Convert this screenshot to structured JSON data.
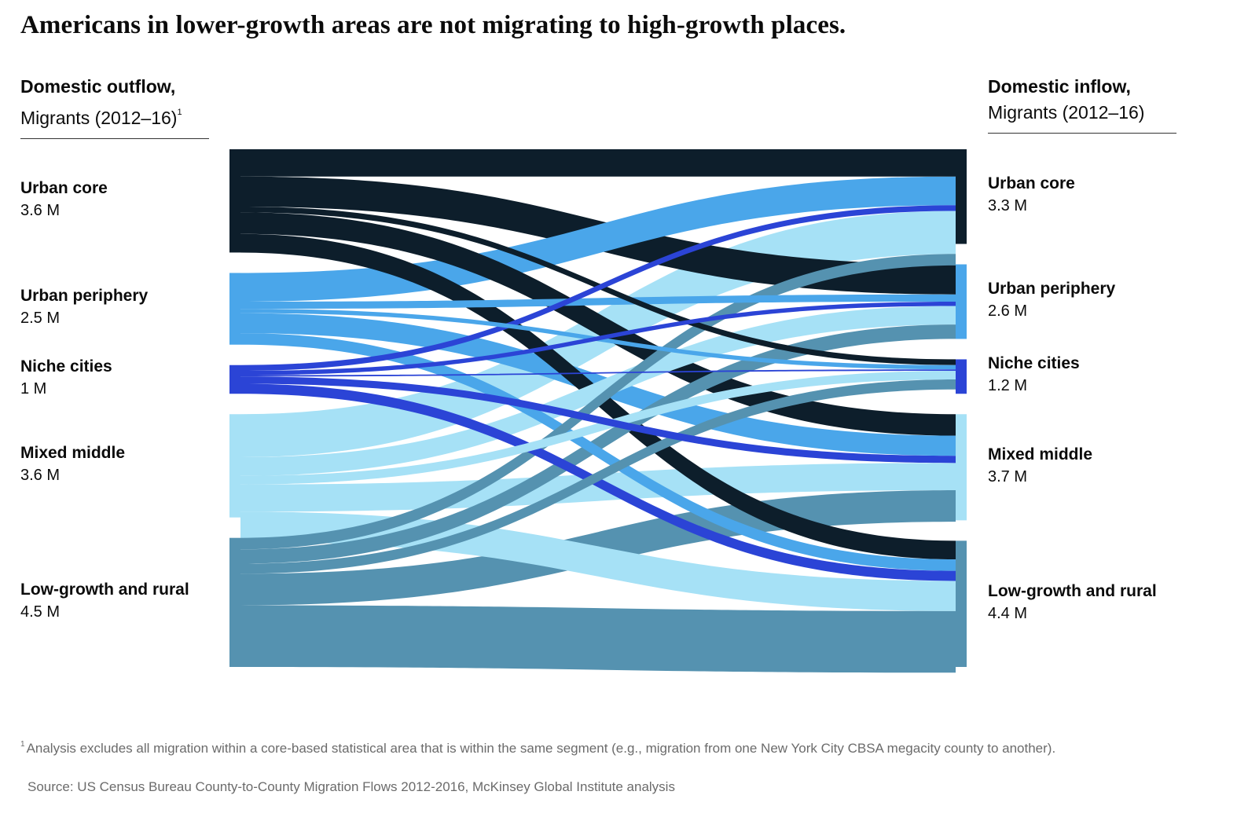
{
  "title": "Americans in lower-growth areas are not migrating to high-growth places.",
  "left_header": {
    "title": "Domestic outflow,",
    "subtitle": "Migrants (2012–16)",
    "footnote_mark": "1"
  },
  "right_header": {
    "title": "Domestic inflow,",
    "subtitle": "Migrants (2012–16)"
  },
  "footnote": {
    "mark": "1",
    "text": "Analysis excludes all migration within a  core-based statistical area that is within the same segment (e.g., migration from one New York City CBSA megacity county to another)."
  },
  "source": "Source: US Census Bureau County-to-County Migration Flows 2012-2016, McKinsey Global Institute analysis",
  "colors": {
    "urban_core": "#0d1e2b",
    "urban_periphery": "#4aa6ea",
    "niche_cities": "#2b44d6",
    "mixed_middle": "#a6e1f6",
    "low_growth_rural": "#5592b0"
  },
  "chart_data": {
    "type": "sankey",
    "unit": "M",
    "outflow": [
      {
        "name": "Urban core",
        "label": "3.6 M",
        "value": 3.6
      },
      {
        "name": "Urban periphery",
        "label": "2.5 M",
        "value": 2.5
      },
      {
        "name": "Niche cities",
        "label": "1 M",
        "value": 1.0
      },
      {
        "name": "Mixed middle",
        "label": "3.6 M",
        "value": 3.6
      },
      {
        "name": "Low-growth and rural",
        "label": "4.5 M",
        "value": 4.5
      }
    ],
    "inflow": [
      {
        "name": "Urban core",
        "label": "3.3 M",
        "value": 3.3
      },
      {
        "name": "Urban periphery",
        "label": "2.6 M",
        "value": 2.6
      },
      {
        "name": "Niche cities",
        "label": "1.2 M",
        "value": 1.2
      },
      {
        "name": "Mixed middle",
        "label": "3.7 M",
        "value": 3.7
      },
      {
        "name": "Low-growth and rural",
        "label": "4.4 M",
        "value": 4.4
      }
    ],
    "flows": [
      {
        "from": 0,
        "to": 0,
        "value": 0.95
      },
      {
        "from": 0,
        "to": 1,
        "value": 1.05
      },
      {
        "from": 0,
        "to": 2,
        "value": 0.2
      },
      {
        "from": 0,
        "to": 3,
        "value": 0.75
      },
      {
        "from": 0,
        "to": 4,
        "value": 0.65
      },
      {
        "from": 1,
        "to": 0,
        "value": 1.0
      },
      {
        "from": 1,
        "to": 1,
        "value": 0.25
      },
      {
        "from": 1,
        "to": 2,
        "value": 0.15
      },
      {
        "from": 1,
        "to": 3,
        "value": 0.7
      },
      {
        "from": 1,
        "to": 4,
        "value": 0.4
      },
      {
        "from": 2,
        "to": 0,
        "value": 0.2
      },
      {
        "from": 2,
        "to": 1,
        "value": 0.15
      },
      {
        "from": 2,
        "to": 2,
        "value": 0.05
      },
      {
        "from": 2,
        "to": 3,
        "value": 0.25
      },
      {
        "from": 2,
        "to": 4,
        "value": 0.35
      },
      {
        "from": 3,
        "to": 0,
        "value": 1.5
      },
      {
        "from": 3,
        "to": 1,
        "value": 0.65
      },
      {
        "from": 3,
        "to": 2,
        "value": 0.3
      },
      {
        "from": 3,
        "to": 3,
        "value": 0.95
      },
      {
        "from": 3,
        "to": 4,
        "value": 1.05
      },
      {
        "from": 4,
        "to": 0,
        "value": 0.4
      },
      {
        "from": 4,
        "to": 1,
        "value": 0.5
      },
      {
        "from": 4,
        "to": 2,
        "value": 0.35
      },
      {
        "from": 4,
        "to": 3,
        "value": 1.1
      },
      {
        "from": 4,
        "to": 4,
        "value": 2.15
      }
    ]
  }
}
